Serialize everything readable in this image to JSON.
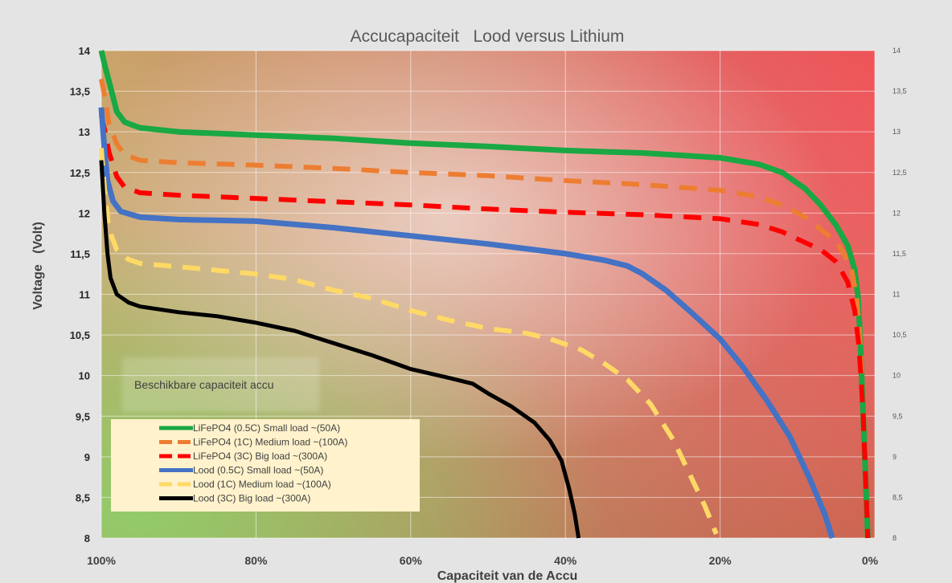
{
  "chart_data": {
    "type": "line",
    "title": "Accucapaciteit   Lood versus Lithium",
    "xlabel": "Capaciteit van de Accu",
    "ylabel": "Voltage   (Volt)",
    "xlim": [
      100,
      0
    ],
    "ylim": [
      8,
      14
    ],
    "x_ticks": [
      "100%",
      "80%",
      "60%",
      "40%",
      "20%",
      "0%"
    ],
    "y_ticks_left": [
      "14",
      "13,5",
      "13",
      "12,5",
      "12",
      "11,5",
      "11",
      "10,5",
      "10",
      "9,5",
      "9",
      "8,5",
      "8"
    ],
    "y_ticks_right": [
      "14",
      "13,5",
      "13",
      "12,5",
      "12",
      "11,5",
      "11",
      "10,5",
      "10",
      "9,5",
      "9",
      "8,5",
      "8"
    ],
    "grid": true,
    "legend_position": "bottom-left",
    "annotation": "Beschikbare capaciteit accu",
    "series": [
      {
        "name": "LiFePO4  (0.5C) Small load  ~(50A)",
        "color": "#19a843",
        "dash": "solid",
        "points": [
          [
            100,
            14.0
          ],
          [
            99.5,
            13.8
          ],
          [
            98.8,
            13.55
          ],
          [
            98,
            13.25
          ],
          [
            97,
            13.12
          ],
          [
            95,
            13.05
          ],
          [
            90,
            13.0
          ],
          [
            80,
            12.96
          ],
          [
            70,
            12.92
          ],
          [
            60,
            12.86
          ],
          [
            50,
            12.82
          ],
          [
            40,
            12.77
          ],
          [
            30,
            12.74
          ],
          [
            20,
            12.68
          ],
          [
            15,
            12.6
          ],
          [
            12,
            12.5
          ],
          [
            9,
            12.3
          ],
          [
            7,
            12.1
          ],
          [
            5,
            11.85
          ],
          [
            3.5,
            11.6
          ],
          [
            2.6,
            11.3
          ],
          [
            2.2,
            11.0
          ],
          [
            1.9,
            10.5
          ],
          [
            1.7,
            10.0
          ],
          [
            1.5,
            9.5
          ],
          [
            1.3,
            9.0
          ],
          [
            1.1,
            8.5
          ],
          [
            0.9,
            8.0
          ]
        ]
      },
      {
        "name": "LiFePO4 (1C) Medium load  ~(100A)",
        "color": "#ed7d31",
        "dash": "dashed",
        "points": [
          [
            100,
            13.65
          ],
          [
            99.5,
            13.4
          ],
          [
            99,
            13.1
          ],
          [
            98,
            12.85
          ],
          [
            97,
            12.72
          ],
          [
            95,
            12.65
          ],
          [
            90,
            12.62
          ],
          [
            80,
            12.59
          ],
          [
            70,
            12.55
          ],
          [
            60,
            12.5
          ],
          [
            50,
            12.46
          ],
          [
            40,
            12.4
          ],
          [
            30,
            12.35
          ],
          [
            20,
            12.28
          ],
          [
            15,
            12.2
          ],
          [
            12,
            12.1
          ],
          [
            9,
            11.95
          ],
          [
            7,
            11.8
          ],
          [
            5,
            11.65
          ],
          [
            4,
            11.5
          ],
          [
            3,
            11.3
          ],
          [
            2.4,
            11.0
          ],
          [
            2.0,
            10.6
          ],
          [
            1.7,
            10.0
          ]
        ]
      },
      {
        "name": "LiFePO4 (3C) Big load  ~(300A)",
        "color": "#ff0000",
        "dash": "dashed",
        "points": [
          [
            100,
            13.2
          ],
          [
            99.5,
            13.0
          ],
          [
            99,
            12.75
          ],
          [
            98,
            12.45
          ],
          [
            97,
            12.32
          ],
          [
            95,
            12.25
          ],
          [
            90,
            12.22
          ],
          [
            80,
            12.18
          ],
          [
            70,
            12.14
          ],
          [
            60,
            12.1
          ],
          [
            50,
            12.05
          ],
          [
            40,
            12.01
          ],
          [
            30,
            11.98
          ],
          [
            20,
            11.93
          ],
          [
            15,
            11.86
          ],
          [
            12,
            11.77
          ],
          [
            10,
            11.68
          ],
          [
            7,
            11.55
          ],
          [
            5,
            11.4
          ],
          [
            3.5,
            11.15
          ],
          [
            2.6,
            10.8
          ],
          [
            2.1,
            10.4
          ],
          [
            1.8,
            10.0
          ],
          [
            1.5,
            9.5
          ],
          [
            1.3,
            9.0
          ],
          [
            1.1,
            8.5
          ],
          [
            0.9,
            8.0
          ]
        ]
      },
      {
        "name": "Lood (0.5C) Small load  ~(50A)",
        "color": "#4472c4",
        "dash": "solid",
        "points": [
          [
            100,
            13.3
          ],
          [
            99.6,
            12.8
          ],
          [
            99.2,
            12.4
          ],
          [
            98.5,
            12.15
          ],
          [
            97.5,
            12.02
          ],
          [
            95,
            11.95
          ],
          [
            90,
            11.92
          ],
          [
            80,
            11.9
          ],
          [
            70,
            11.82
          ],
          [
            60,
            11.72
          ],
          [
            50,
            11.62
          ],
          [
            40,
            11.5
          ],
          [
            35,
            11.42
          ],
          [
            32,
            11.35
          ],
          [
            30,
            11.25
          ],
          [
            27,
            11.05
          ],
          [
            24,
            10.8
          ],
          [
            20,
            10.45
          ],
          [
            17,
            10.1
          ],
          [
            14,
            9.7
          ],
          [
            11,
            9.25
          ],
          [
            8.5,
            8.75
          ],
          [
            6.5,
            8.3
          ],
          [
            5.5,
            8.0
          ]
        ]
      },
      {
        "name": "Lood (1C) Medium load  ~(100A)",
        "color": "#ffd966",
        "dash": "dashed",
        "points": [
          [
            100,
            12.8
          ],
          [
            99.5,
            12.2
          ],
          [
            99,
            11.8
          ],
          [
            98,
            11.55
          ],
          [
            96.5,
            11.43
          ],
          [
            95,
            11.38
          ],
          [
            90,
            11.34
          ],
          [
            80,
            11.25
          ],
          [
            75,
            11.18
          ],
          [
            70,
            11.05
          ],
          [
            65,
            10.95
          ],
          [
            60,
            10.8
          ],
          [
            55,
            10.68
          ],
          [
            50,
            10.58
          ],
          [
            45,
            10.52
          ],
          [
            42,
            10.45
          ],
          [
            38,
            10.32
          ],
          [
            35,
            10.15
          ],
          [
            32,
            9.95
          ],
          [
            29,
            9.65
          ],
          [
            26,
            9.2
          ],
          [
            24,
            8.8
          ],
          [
            22,
            8.4
          ],
          [
            20.5,
            8.05
          ]
        ]
      },
      {
        "name": "Lood (3C) Big load  ~(300A)",
        "color": "#000000",
        "dash": "solid",
        "points": [
          [
            100,
            12.65
          ],
          [
            99.6,
            12.0
          ],
          [
            99.2,
            11.5
          ],
          [
            98.8,
            11.2
          ],
          [
            98,
            11.0
          ],
          [
            96.5,
            10.9
          ],
          [
            95,
            10.85
          ],
          [
            90,
            10.78
          ],
          [
            85,
            10.73
          ],
          [
            80,
            10.65
          ],
          [
            75,
            10.55
          ],
          [
            70,
            10.4
          ],
          [
            65,
            10.25
          ],
          [
            60,
            10.08
          ],
          [
            55,
            9.97
          ],
          [
            52,
            9.9
          ],
          [
            50,
            9.78
          ],
          [
            47,
            9.62
          ],
          [
            44,
            9.42
          ],
          [
            42,
            9.2
          ],
          [
            40.5,
            8.95
          ],
          [
            39.5,
            8.6
          ],
          [
            38.8,
            8.3
          ],
          [
            38.3,
            8.0
          ]
        ]
      }
    ]
  }
}
